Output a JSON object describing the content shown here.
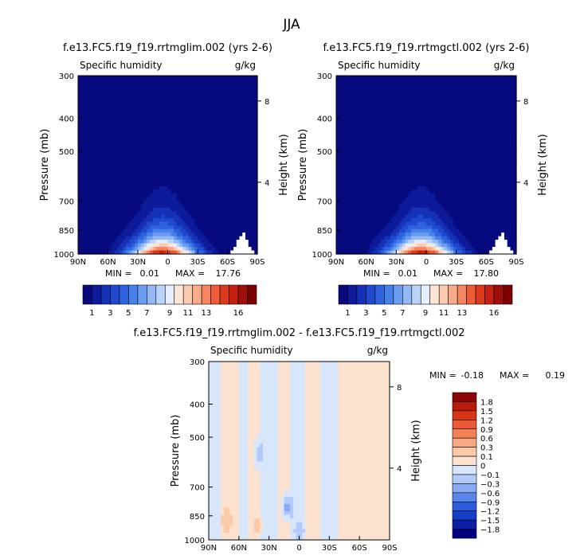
{
  "page": {
    "title": "JJA"
  },
  "colors": {
    "base_palette": [
      "#070a7e",
      "#0d1a9a",
      "#1532b7",
      "#1f4ad0",
      "#2e63df",
      "#4680e9",
      "#6a9cf0",
      "#92b8f5",
      "#bcd3f8",
      "#e6eefb",
      "#fde5d5",
      "#fbcbb1",
      "#f9ab8a",
      "#f6865f",
      "#ee5c36",
      "#dd391c",
      "#c3200f",
      "#9f0f0a",
      "#7c0000"
    ],
    "diff_palette": [
      "#000080",
      "#0a1fa3",
      "#163dc5",
      "#2a5ce0",
      "#5a86ec",
      "#8aa9f3",
      "#b3caf8",
      "#d8e6fb",
      "#fde2cf",
      "#fbcaa8",
      "#f8a883",
      "#f3825a",
      "#ea5a34",
      "#d83518",
      "#b81b08",
      "#8e0505"
    ]
  },
  "chart_data": [
    {
      "id": "panel-1",
      "type": "heatmap",
      "title": "f.e13.FC5.f19_f19.rrtmglim.002 (yrs 2-6)",
      "subtitle_left": "Specific humidity",
      "subtitle_right": "g/kg",
      "ylabel": "Pressure (mb)",
      "ylabel_right": "Height (km)",
      "pressure_ticks": [
        "300",
        "400",
        "500",
        "700",
        "850",
        "1000"
      ],
      "height_ticks": [
        "8",
        "4"
      ],
      "lat_ticks": [
        "90N",
        "60N",
        "30N",
        "0",
        "30S",
        "60S",
        "90S"
      ],
      "ylim": [
        1000,
        300
      ],
      "xlim": [
        90,
        -90
      ],
      "min_label": "MIN =",
      "min_value": "0.01",
      "max_label": "MAX =",
      "max_value": "17.76",
      "colorbar_labels": [
        "1",
        "3",
        "5",
        "7",
        "9",
        "11",
        "13",
        "16"
      ],
      "field": {
        "peak_lat": 5,
        "max_value": 17.76,
        "min_value": 0.01,
        "southern_cutoff_lat": -62
      }
    },
    {
      "id": "panel-2",
      "type": "heatmap",
      "title": "f.e13.FC5.f19_f19.rrtmgctl.002 (yrs 2-6)",
      "subtitle_left": "Specific humidity",
      "subtitle_right": "g/kg",
      "ylabel": "Pressure (mb)",
      "ylabel_right": "Height (km)",
      "pressure_ticks": [
        "300",
        "400",
        "500",
        "700",
        "850",
        "1000"
      ],
      "height_ticks": [
        "8",
        "4"
      ],
      "lat_ticks": [
        "90N",
        "60N",
        "30N",
        "0",
        "30S",
        "60S",
        "90S"
      ],
      "ylim": [
        1000,
        300
      ],
      "xlim": [
        90,
        -90
      ],
      "min_label": "MIN =",
      "min_value": "0.01",
      "max_label": "MAX =",
      "max_value": "17.80",
      "colorbar_labels": [
        "1",
        "3",
        "5",
        "7",
        "9",
        "11",
        "13",
        "16"
      ],
      "field": {
        "peak_lat": 5,
        "max_value": 17.8,
        "min_value": 0.01,
        "southern_cutoff_lat": -62
      }
    },
    {
      "id": "panel-diff",
      "type": "heatmap",
      "title": "f.e13.FC5.f19_f19.rrtmglim.002 - f.e13.FC5.f19_f19.rrtmgctl.002",
      "subtitle_left": "Specific humidity",
      "subtitle_right": "g/kg",
      "ylabel": "Pressure (mb)",
      "ylabel_right": "Height (km)",
      "pressure_ticks": [
        "300",
        "400",
        "500",
        "700",
        "850",
        "1000"
      ],
      "height_ticks": [
        "8",
        "4"
      ],
      "lat_ticks": [
        "90N",
        "60N",
        "30N",
        "0",
        "30S",
        "60S",
        "90S"
      ],
      "ylim": [
        1000,
        300
      ],
      "xlim": [
        90,
        -90
      ],
      "min_label": "MIN =",
      "min_value": "-0.18",
      "max_label": "MAX =",
      "max_value": "0.19",
      "colorbar_labels": [
        "1.8",
        "1.5",
        "1.2",
        "0.9",
        "0.6",
        "0.3",
        "0.1",
        "0",
        "−0.1",
        "−0.3",
        "−0.6",
        "−0.9",
        "−1.2",
        "−1.5",
        "−1.8"
      ],
      "field": {
        "background_value": -0.05,
        "positive_bands_lat": [
          [
            78,
            60
          ],
          [
            52,
            38
          ],
          [
            22,
            10
          ],
          [
            -5,
            -20
          ],
          [
            -40,
            -90
          ]
        ],
        "pos_value": 0.05,
        "hotspots": [
          {
            "lat": 72,
            "p": 880,
            "value": 0.19
          },
          {
            "lat": 42,
            "p": 910,
            "value": 0.15
          },
          {
            "lat": 12,
            "p": 800,
            "value": -0.18
          },
          {
            "lat": 0,
            "p": 950,
            "value": -0.12
          },
          {
            "lat": 40,
            "p": 560,
            "value": -0.1
          }
        ]
      }
    }
  ]
}
